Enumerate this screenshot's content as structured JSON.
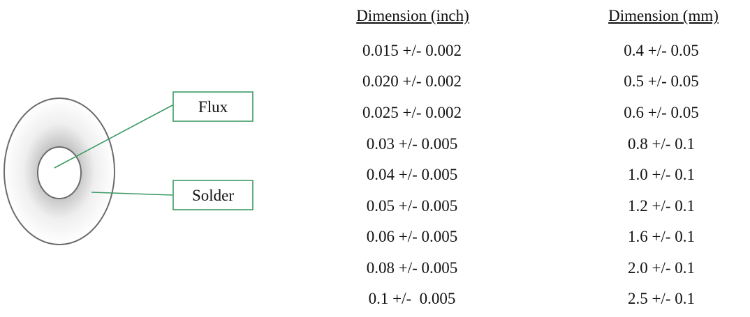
{
  "diagram": {
    "labels": {
      "flux": "Flux",
      "solder": "Solder"
    },
    "colors": {
      "leader_line": "#3a9a64",
      "label_border": "#3a9a64",
      "outline": "#6b6b6b"
    }
  },
  "table": {
    "headers": [
      "Dimension (inch)",
      "Dimension (mm)"
    ],
    "rows": [
      [
        "0.015 +/- 0.002",
        "0.4 +/- 0.05"
      ],
      [
        "0.020 +/- 0.002",
        "0.5 +/- 0.05"
      ],
      [
        "0.025 +/- 0.002",
        "0.6 +/- 0.05"
      ],
      [
        "0.03 +/- 0.005",
        "0.8 +/- 0.1"
      ],
      [
        "0.04 +/- 0.005",
        "1.0 +/- 0.1"
      ],
      [
        "0.05 +/- 0.005",
        "1.2 +/- 0.1"
      ],
      [
        "0.06 +/- 0.005",
        "1.6 +/- 0.1"
      ],
      [
        "0.08 +/- 0.005",
        "2.0 +/- 0.1"
      ],
      [
        "0.1 +/-  0.005",
        "2.5 +/- 0.1"
      ]
    ]
  }
}
